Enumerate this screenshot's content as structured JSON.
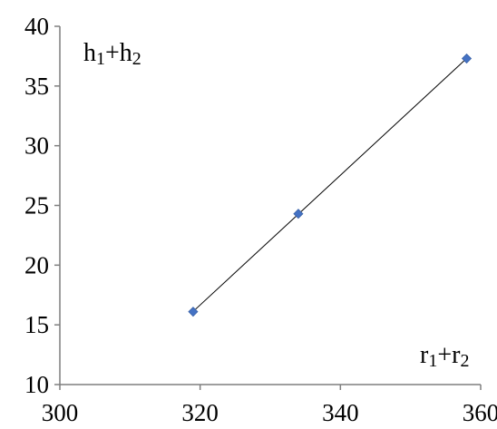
{
  "chart_data": {
    "type": "scatter",
    "xlabel": {
      "base1": "r",
      "sub1": "1",
      "op": "+",
      "base2": "r",
      "sub2": "2"
    },
    "ylabel": {
      "base1": "h",
      "sub1": "1",
      "op": "+",
      "base2": "h",
      "sub2": "2"
    },
    "xlim": [
      300,
      360
    ],
    "ylim": [
      10,
      40
    ],
    "x_ticks": [
      300,
      320,
      340,
      360
    ],
    "y_ticks": [
      10,
      15,
      20,
      25,
      30,
      35,
      40
    ],
    "x_tick_labels": [
      "300",
      "320",
      "340",
      "360"
    ],
    "y_tick_labels": [
      "10",
      "15",
      "20",
      "25",
      "30",
      "35",
      "40"
    ],
    "grid": false,
    "legend": "none",
    "series": [
      {
        "marker": "diamond",
        "color": "#4472C4",
        "trendline": true,
        "x": [
          319,
          334,
          358
        ],
        "y": [
          16.1,
          24.3,
          37.3
        ]
      }
    ]
  }
}
